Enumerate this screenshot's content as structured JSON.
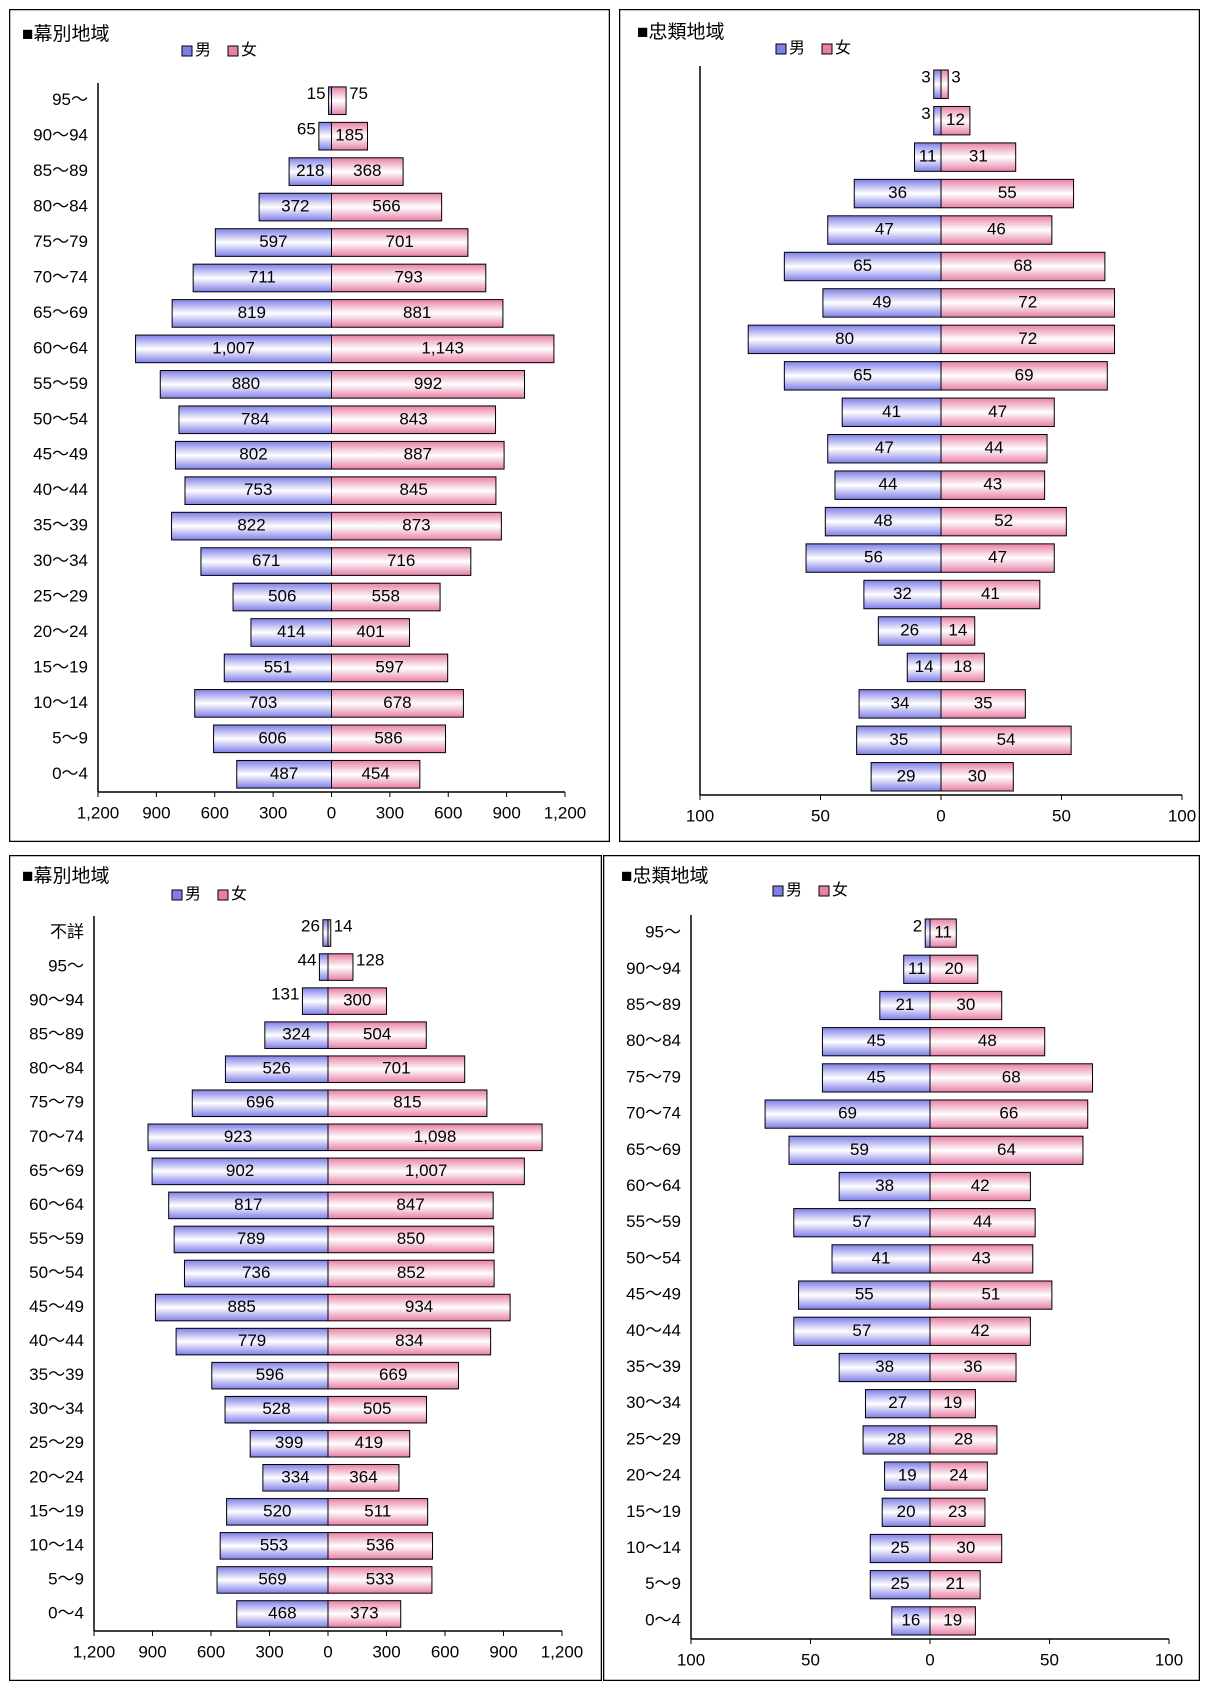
{
  "chart_data": [
    {
      "type": "pyramid",
      "title": "■幕別地域",
      "categories": [
        "95～",
        "90～94",
        "85～89",
        "80～84",
        "75～79",
        "70～74",
        "65～69",
        "60～64",
        "55～59",
        "50～54",
        "45～49",
        "40～44",
        "35～39",
        "30～34",
        "25～29",
        "20～24",
        "15～19",
        "10～14",
        "5～9",
        "0～4"
      ],
      "series": [
        {
          "name": "男",
          "color": "#7f7fe8",
          "values": [
            15,
            65,
            218,
            372,
            597,
            711,
            819,
            1007,
            880,
            784,
            802,
            753,
            822,
            671,
            506,
            414,
            551,
            703,
            606,
            487
          ],
          "value_labels": [
            "15",
            "65",
            "218",
            "372",
            "597",
            "711",
            "819",
            "1,007",
            "880",
            "784",
            "802",
            "753",
            "822",
            "671",
            "506",
            "414",
            "551",
            "703",
            "606",
            "487"
          ]
        },
        {
          "name": "女",
          "color": "#e87fa8",
          "values": [
            75,
            185,
            368,
            566,
            701,
            793,
            881,
            1143,
            992,
            843,
            887,
            845,
            873,
            716,
            558,
            401,
            597,
            678,
            586,
            454
          ],
          "value_labels": [
            "75",
            "185",
            "368",
            "566",
            "701",
            "793",
            "881",
            "1,143",
            "992",
            "843",
            "887",
            "845",
            "873",
            "716",
            "558",
            "401",
            "597",
            "678",
            "586",
            "454"
          ]
        }
      ],
      "xlim": [
        -1200,
        1200
      ],
      "xticks": [
        {
          "value": -1200,
          "label": "1,200"
        },
        {
          "value": -900,
          "label": "900"
        },
        {
          "value": -600,
          "label": "600"
        },
        {
          "value": -300,
          "label": "300"
        },
        0,
        300,
        600,
        900,
        {
          "value": 1200,
          "label": "1,200"
        }
      ]
    },
    {
      "type": "pyramid",
      "title": "■忠類地域",
      "series": [
        {
          "name": "男",
          "color": "#7f7fe8",
          "values": [
            3,
            3,
            11,
            36,
            47,
            65,
            49,
            80,
            65,
            41,
            47,
            44,
            48,
            56,
            32,
            26,
            14,
            34,
            35,
            29
          ]
        },
        {
          "name": "女",
          "color": "#e87fa8",
          "values": [
            3,
            12,
            31,
            55,
            46,
            68,
            72,
            72,
            69,
            47,
            44,
            43,
            52,
            47,
            41,
            14,
            18,
            35,
            54,
            30
          ]
        }
      ],
      "xlim": [
        -100,
        100
      ],
      "xticks": [
        {
          "value": -100,
          "label": "100"
        },
        {
          "value": -50,
          "label": "50"
        },
        0,
        50,
        100
      ]
    },
    {
      "type": "pyramid",
      "title": "■幕別地域",
      "categories": [
        "不詳",
        "95～",
        "90～94",
        "85～89",
        "80～84",
        "75～79",
        "70～74",
        "65～69",
        "60～64",
        "55～59",
        "50～54",
        "45～49",
        "40～44",
        "35～39",
        "30～34",
        "25～29",
        "20～24",
        "15～19",
        "10～14",
        "5～9",
        "0～4"
      ],
      "series": [
        {
          "name": "男",
          "color": "#7f7fe8",
          "values": [
            26,
            44,
            131,
            324,
            526,
            696,
            923,
            902,
            817,
            789,
            736,
            885,
            779,
            596,
            528,
            399,
            334,
            520,
            553,
            569,
            468
          ]
        },
        {
          "name": "女",
          "color": "#e87fa8",
          "values": [
            14,
            128,
            300,
            504,
            701,
            815,
            1098,
            1007,
            847,
            850,
            852,
            934,
            834,
            669,
            505,
            419,
            364,
            511,
            536,
            533,
            373
          ],
          "value_labels": [
            "14",
            "128",
            "300",
            "504",
            "701",
            "815",
            "1,098",
            "1,007",
            "847",
            "850",
            "852",
            "934",
            "834",
            "669",
            "505",
            "419",
            "364",
            "511",
            "536",
            "533",
            "373"
          ]
        }
      ],
      "xlim": [
        -1200,
        1200
      ],
      "xticks": [
        {
          "value": -1200,
          "label": "1,200"
        },
        {
          "value": -900,
          "label": "900"
        },
        {
          "value": -600,
          "label": "600"
        },
        {
          "value": -300,
          "label": "300"
        },
        0,
        300,
        600,
        900,
        {
          "value": 1200,
          "label": "1,200"
        }
      ]
    },
    {
      "type": "pyramid",
      "title": "■忠類地域",
      "categories": [
        "95～",
        "90～94",
        "85～89",
        "80～84",
        "75～79",
        "70～74",
        "65～69",
        "60～64",
        "55～59",
        "50～54",
        "45～49",
        "40～44",
        "35～39",
        "30～34",
        "25～29",
        "20～24",
        "15～19",
        "10～14",
        "5～9",
        "0～4"
      ],
      "series": [
        {
          "name": "男",
          "color": "#7f7fe8",
          "values": [
            2,
            11,
            21,
            45,
            45,
            69,
            59,
            38,
            57,
            41,
            55,
            57,
            38,
            27,
            28,
            19,
            20,
            25,
            25,
            16
          ]
        },
        {
          "name": "女",
          "color": "#e87fa8",
          "values": [
            11,
            20,
            30,
            48,
            68,
            66,
            64,
            42,
            44,
            43,
            51,
            42,
            36,
            19,
            28,
            24,
            23,
            30,
            21,
            19
          ]
        }
      ],
      "xlim": [
        -100,
        100
      ],
      "xticks": [
        {
          "value": -100,
          "label": "100"
        },
        {
          "value": -50,
          "label": "50"
        },
        0,
        50,
        100
      ]
    }
  ]
}
